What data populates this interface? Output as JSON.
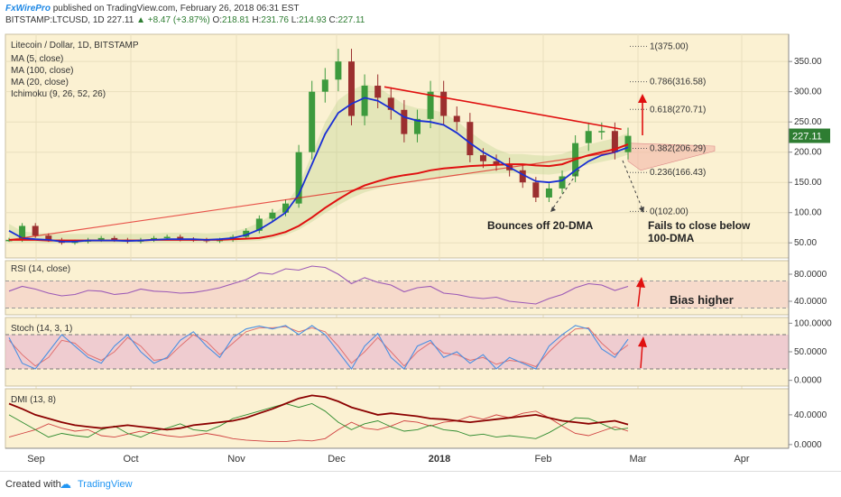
{
  "header": {
    "brand": "FxWirePro",
    "published": "published on TradingView.com, February 26, 2018 06:31 EST",
    "symbol_line": {
      "symbol": "BITSTAMP:LTCUSD, 1D",
      "last": "227.11",
      "change": "+8.47 (+3.87%)",
      "open_label": "O:",
      "open": "218.81",
      "high_label": "H:",
      "high": "231.76",
      "low_label": "L:",
      "low": "214.93",
      "close_label": "C:",
      "close": "227.11"
    }
  },
  "footer": {
    "created_with": "Created with",
    "brand": "TradingView"
  },
  "colors": {
    "panel_bg": "#fbf1d2",
    "up_candle": "#3d9a3d",
    "down_candle": "#9b2f2f",
    "ma20": "#1a2fd4",
    "ma100": "#e01010",
    "trendline": "#e01010",
    "cloud": "#a8c87a",
    "rsi": "#9b59b6",
    "stoch_k": "#4a90e2",
    "stoch_d": "#e07070",
    "dmi_adx": "#8b0000",
    "dmi_plus": "#2e8b2e",
    "dmi_minus": "#d04040",
    "price_badge": "#2e7d32",
    "arrow": "#e01010",
    "ann_text": "#222222"
  },
  "chart_data": [
    {
      "type": "candlestick",
      "title": "Litecoin / Dollar, 1D, BITSTAMP",
      "indicators": [
        "MA (5, close)",
        "MA (100, close)",
        "MA (20, close)",
        "Ichimoku (9, 26, 52, 26)"
      ],
      "x_ticks": [
        "Sep",
        "Oct",
        "Nov",
        "Dec",
        "2018",
        "Feb",
        "Mar",
        "Apr"
      ],
      "y_ticks": [
        "50.00",
        "100.00",
        "150.00",
        "200.00",
        "250.00",
        "300.00",
        "350.00"
      ],
      "ylim": [
        25,
        395
      ],
      "last_price": "227.11",
      "fib_levels": [
        {
          "label": "1(375.00)",
          "value": 375.0
        },
        {
          "label": "0.786(316.58)",
          "value": 316.58
        },
        {
          "label": "0.618(270.71)",
          "value": 270.71
        },
        {
          "label": "0.382(206.29)",
          "value": 206.29
        },
        {
          "label": "0.236(166.43)",
          "value": 166.43
        },
        {
          "label": "0(102.00)",
          "value": 102.0
        }
      ],
      "close_series": [
        55,
        78,
        62,
        55,
        50,
        52,
        55,
        58,
        55,
        52,
        55,
        58,
        60,
        56,
        55,
        53,
        55,
        60,
        70,
        90,
        100,
        115,
        200,
        300,
        320,
        350,
        260,
        310,
        290,
        270,
        230,
        255,
        300,
        260,
        250,
        195,
        185,
        180,
        170,
        150,
        125,
        140,
        160,
        215,
        235,
        235,
        200,
        227
      ],
      "ma20_series": [
        70,
        58,
        56,
        55,
        52,
        52,
        54,
        54,
        54,
        53,
        54,
        55,
        56,
        56,
        56,
        55,
        56,
        58,
        63,
        72,
        85,
        100,
        130,
        180,
        230,
        265,
        280,
        290,
        285,
        272,
        258,
        252,
        250,
        245,
        232,
        215,
        200,
        188,
        175,
        163,
        152,
        150,
        153,
        170,
        185,
        195,
        200,
        208
      ],
      "ma100_series": [
        55,
        55,
        55,
        54,
        54,
        54,
        54,
        54,
        54,
        54,
        54,
        55,
        55,
        55,
        55,
        55,
        55,
        56,
        57,
        58,
        62,
        68,
        78,
        92,
        108,
        122,
        135,
        145,
        152,
        158,
        162,
        165,
        170,
        173,
        175,
        177,
        178,
        179,
        180,
        180,
        178,
        177,
        180,
        188,
        195,
        200,
        205,
        213
      ],
      "trendline_upper": {
        "start": {
          "x": 28.5,
          "y": 308
        },
        "end": {
          "x": 46.5,
          "y": 238
        }
      },
      "trendline_lower": {
        "start": {
          "x": 0,
          "y": 55
        },
        "end": {
          "x": 46,
          "y": 200
        }
      },
      "annotations": {
        "bounce": "Bounces off 20-DMA",
        "fails_line1": "Fails to close below",
        "fails_line2": "100-DMA"
      }
    },
    {
      "type": "line",
      "title": "RSI (14, close)",
      "y_ticks": [
        "40.0000",
        "80.0000"
      ],
      "ylim": [
        20,
        100
      ],
      "levels": [
        30,
        70
      ],
      "values": [
        55,
        62,
        58,
        52,
        48,
        50,
        56,
        55,
        50,
        52,
        58,
        55,
        54,
        52,
        53,
        56,
        60,
        66,
        72,
        82,
        80,
        88,
        86,
        92,
        90,
        80,
        66,
        75,
        68,
        64,
        54,
        60,
        62,
        52,
        50,
        46,
        44,
        46,
        40,
        38,
        36,
        44,
        50,
        60,
        66,
        64,
        56,
        62
      ],
      "annotation": "Bias higher"
    },
    {
      "type": "line",
      "title": "Stoch (14, 3, 1)",
      "y_ticks": [
        "0.0000",
        "50.0000",
        "100.0000"
      ],
      "ylim": [
        -10,
        110
      ],
      "levels": [
        20,
        80
      ],
      "k_values": [
        75,
        30,
        20,
        50,
        80,
        60,
        40,
        30,
        60,
        80,
        50,
        30,
        40,
        70,
        85,
        60,
        40,
        75,
        90,
        95,
        90,
        96,
        80,
        96,
        80,
        50,
        20,
        60,
        82,
        40,
        20,
        60,
        70,
        40,
        50,
        30,
        45,
        20,
        40,
        30,
        20,
        60,
        80,
        96,
        90,
        55,
        40,
        72
      ],
      "d_values": [
        70,
        45,
        25,
        40,
        70,
        65,
        45,
        35,
        50,
        75,
        60,
        35,
        38,
        60,
        80,
        68,
        45,
        65,
        85,
        92,
        92,
        94,
        85,
        92,
        85,
        60,
        30,
        50,
        75,
        50,
        25,
        50,
        66,
        48,
        45,
        35,
        40,
        28,
        35,
        32,
        24,
        50,
        72,
        90,
        92,
        65,
        45,
        62
      ]
    },
    {
      "type": "line",
      "title": "DMI (13, 8)",
      "y_ticks": [
        "0.0000",
        "40.0000"
      ],
      "ylim": [
        -5,
        75
      ],
      "adx_values": [
        55,
        48,
        40,
        35,
        30,
        26,
        24,
        22,
        24,
        26,
        24,
        22,
        20,
        22,
        26,
        28,
        30,
        32,
        36,
        42,
        48,
        55,
        62,
        66,
        64,
        58,
        50,
        45,
        40,
        42,
        40,
        38,
        35,
        34,
        32,
        30,
        32,
        34,
        36,
        38,
        40,
        36,
        32,
        30,
        28,
        30,
        32,
        27
      ],
      "plus_values": [
        40,
        30,
        20,
        10,
        15,
        12,
        10,
        20,
        25,
        15,
        10,
        18,
        22,
        28,
        20,
        18,
        25,
        35,
        40,
        45,
        50,
        55,
        50,
        55,
        45,
        30,
        20,
        28,
        32,
        24,
        18,
        20,
        26,
        20,
        18,
        12,
        14,
        10,
        12,
        10,
        8,
        16,
        26,
        36,
        35,
        28,
        20,
        22
      ],
      "minus_values": [
        10,
        15,
        20,
        28,
        22,
        18,
        20,
        12,
        10,
        14,
        18,
        15,
        12,
        10,
        12,
        15,
        12,
        8,
        6,
        5,
        4,
        4,
        6,
        5,
        8,
        20,
        30,
        22,
        20,
        25,
        32,
        30,
        25,
        30,
        32,
        38,
        34,
        40,
        36,
        42,
        45,
        36,
        25,
        15,
        12,
        18,
        24,
        18
      ]
    }
  ]
}
